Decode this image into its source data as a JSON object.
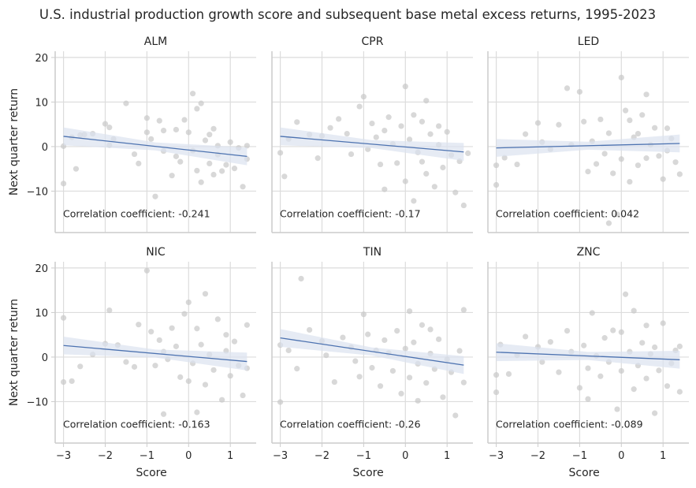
{
  "chart_data": {
    "type": "scatter",
    "title": "U.S. industrial production growth score and subsequent base metal excess returns, 1995-2023",
    "xlabel": "Score",
    "ylabel": "Next quarter return",
    "xlim": [
      -3.2,
      1.62
    ],
    "ylim": [
      -19.3,
      21.4
    ],
    "xticks": [
      -3,
      -2,
      -1,
      0,
      1
    ],
    "yticks": [
      -10,
      0,
      10,
      20
    ],
    "grid": true,
    "colors": {
      "points": "#c8c8c8",
      "line": "#4c72b0",
      "band": "#dbe3f0"
    },
    "corr_label": "Correlation coefficient:",
    "panels": [
      {
        "name": "ALM",
        "corr": "-0.241",
        "fit": [
          [
            -3,
            2.3
          ],
          [
            1.4,
            -2.2
          ]
        ],
        "points": [
          [
            -3,
            0.1
          ],
          [
            -3,
            -8.3
          ],
          [
            -2.8,
            2.1
          ],
          [
            -2.7,
            -5
          ],
          [
            -2.6,
            2.6
          ],
          [
            -2.5,
            2.7
          ],
          [
            -2.3,
            2.9
          ],
          [
            -2,
            5.1
          ],
          [
            -1.9,
            4.3
          ],
          [
            -1.9,
            0.3
          ],
          [
            -1.8,
            1.7
          ],
          [
            -1.5,
            9.7
          ],
          [
            -1.3,
            -1.7
          ],
          [
            -1.2,
            -3.8
          ],
          [
            -1,
            3.2
          ],
          [
            -1,
            6.4
          ],
          [
            -0.9,
            1.7
          ],
          [
            -0.8,
            -11.2
          ],
          [
            -0.7,
            5.8
          ],
          [
            -0.6,
            3.6
          ],
          [
            -0.6,
            -1
          ],
          [
            -0.4,
            -6.5
          ],
          [
            -0.3,
            -2.2
          ],
          [
            -0.2,
            -3.4
          ],
          [
            -0.1,
            6
          ],
          [
            0,
            3.2
          ],
          [
            0.1,
            11.9
          ],
          [
            0.2,
            -5.4
          ],
          [
            0.2,
            8.5
          ],
          [
            0.3,
            -8
          ],
          [
            0.4,
            1.4
          ],
          [
            0.5,
            2.7
          ],
          [
            0.5,
            -3.8
          ],
          [
            0.6,
            4
          ],
          [
            0.7,
            0.2
          ],
          [
            0.7,
            -1.8
          ],
          [
            0.8,
            -5.5
          ],
          [
            0.9,
            -4.1
          ],
          [
            1,
            1
          ],
          [
            1.1,
            -4.9
          ],
          [
            1.2,
            -0.3
          ],
          [
            1.3,
            -9
          ],
          [
            1.4,
            0.2
          ],
          [
            1.4,
            -2.8
          ],
          [
            0.3,
            9.7
          ],
          [
            0.1,
            -0.9
          ],
          [
            -0.3,
            3.8
          ],
          [
            0.6,
            -6.3
          ]
        ]
      },
      {
        "name": "CPR",
        "corr": "-0.17",
        "fit": [
          [
            -3,
            2.3
          ],
          [
            1.4,
            -1.2
          ]
        ],
        "points": [
          [
            -3,
            -1.4
          ],
          [
            -2.9,
            -6.7
          ],
          [
            -2.8,
            1.7
          ],
          [
            -2.6,
            5.5
          ],
          [
            -2.3,
            2.7
          ],
          [
            -2.1,
            -2.6
          ],
          [
            -2,
            2.4
          ],
          [
            -1.8,
            4.2
          ],
          [
            -1.6,
            6.2
          ],
          [
            -1.4,
            2.9
          ],
          [
            -1.3,
            -1.7
          ],
          [
            -1.1,
            9
          ],
          [
            -1,
            11.2
          ],
          [
            -0.9,
            -0.6
          ],
          [
            -0.8,
            5.2
          ],
          [
            -0.7,
            2.1
          ],
          [
            -0.6,
            -4
          ],
          [
            -0.5,
            3.6
          ],
          [
            -0.4,
            6.6
          ],
          [
            -0.3,
            0.6
          ],
          [
            -0.2,
            -3.7
          ],
          [
            -0.1,
            4.6
          ],
          [
            0,
            13.5
          ],
          [
            0,
            -7.8
          ],
          [
            0.1,
            1.6
          ],
          [
            0.2,
            7.1
          ],
          [
            0.3,
            -1.3
          ],
          [
            0.4,
            -3.4
          ],
          [
            0.4,
            5.6
          ],
          [
            0.5,
            10.3
          ],
          [
            0.5,
            -6.1
          ],
          [
            0.6,
            2.8
          ],
          [
            0.7,
            -9
          ],
          [
            0.8,
            0.4
          ],
          [
            0.9,
            -4.7
          ],
          [
            1,
            3.3
          ],
          [
            1.1,
            -1.9
          ],
          [
            1.2,
            -10.3
          ],
          [
            1.3,
            -3.3
          ],
          [
            1.4,
            -13.2
          ],
          [
            1.5,
            -1.5
          ],
          [
            0.2,
            -12.2
          ],
          [
            -0.5,
            -9.6
          ],
          [
            0.8,
            4.6
          ]
        ]
      },
      {
        "name": "LED",
        "corr": "0.042",
        "fit": [
          [
            -3,
            -0.3
          ],
          [
            1.4,
            0.7
          ]
        ],
        "points": [
          [
            -3,
            -4.2
          ],
          [
            -3,
            -8.6
          ],
          [
            -2.8,
            -2.5
          ],
          [
            -2.5,
            -4
          ],
          [
            -2.3,
            2.8
          ],
          [
            -2,
            5.3
          ],
          [
            -1.9,
            1
          ],
          [
            -1.7,
            -0.6
          ],
          [
            -1.5,
            4.9
          ],
          [
            -1.3,
            13.1
          ],
          [
            -1.2,
            0.4
          ],
          [
            -1,
            12.3
          ],
          [
            -0.9,
            5.6
          ],
          [
            -0.8,
            -5.6
          ],
          [
            -0.7,
            1.2
          ],
          [
            -0.6,
            -3.9
          ],
          [
            -0.5,
            6.1
          ],
          [
            -0.4,
            -1.6
          ],
          [
            -0.3,
            3
          ],
          [
            -0.2,
            -6
          ],
          [
            -0.1,
            -15.2
          ],
          [
            0,
            15.5
          ],
          [
            0,
            -2.8
          ],
          [
            0.1,
            8.1
          ],
          [
            0.2,
            5.9
          ],
          [
            0.2,
            -7.9
          ],
          [
            0.3,
            2.1
          ],
          [
            0.4,
            -4.2
          ],
          [
            0.5,
            7.1
          ],
          [
            0.6,
            11.7
          ],
          [
            0.6,
            -2.6
          ],
          [
            0.7,
            0.4
          ],
          [
            0.8,
            4.2
          ],
          [
            0.9,
            -2.1
          ],
          [
            1,
            -7.3
          ],
          [
            1.1,
            -0.9
          ],
          [
            1.2,
            1.8
          ],
          [
            1.3,
            -3.5
          ],
          [
            1.4,
            -6.2
          ],
          [
            -0.3,
            -17.2
          ],
          [
            0.4,
            2.9
          ],
          [
            1.1,
            4.1
          ]
        ]
      },
      {
        "name": "NIC",
        "corr": "-0.163",
        "fit": [
          [
            -3,
            2.6
          ],
          [
            1.4,
            -1
          ]
        ],
        "points": [
          [
            -3,
            8.8
          ],
          [
            -3,
            -5.6
          ],
          [
            -2.8,
            -5.4
          ],
          [
            -2.6,
            -2.1
          ],
          [
            -2.3,
            0.6
          ],
          [
            -2,
            3
          ],
          [
            -1.9,
            10.5
          ],
          [
            -1.7,
            2.7
          ],
          [
            -1.5,
            -1.1
          ],
          [
            -1.3,
            -2.2
          ],
          [
            -1.2,
            7.3
          ],
          [
            -1,
            19.4
          ],
          [
            -0.9,
            5.7
          ],
          [
            -0.8,
            -1.9
          ],
          [
            -0.7,
            3.8
          ],
          [
            -0.6,
            -12.8
          ],
          [
            -0.5,
            -0.5
          ],
          [
            -0.4,
            6.5
          ],
          [
            -0.3,
            2.4
          ],
          [
            -0.2,
            -4.5
          ],
          [
            -0.1,
            9.7
          ],
          [
            0,
            -5.4
          ],
          [
            0,
            12.3
          ],
          [
            0.1,
            -1.4
          ],
          [
            0.2,
            6.4
          ],
          [
            0.3,
            2.8
          ],
          [
            0.4,
            -6.2
          ],
          [
            0.4,
            14.2
          ],
          [
            0.5,
            0.6
          ],
          [
            0.6,
            -2.9
          ],
          [
            0.7,
            8.5
          ],
          [
            0.8,
            -9.6
          ],
          [
            0.9,
            1.4
          ],
          [
            1,
            -4.2
          ],
          [
            1.1,
            3.5
          ],
          [
            1.2,
            -1.9
          ],
          [
            1.3,
            -8.6
          ],
          [
            1.4,
            7.2
          ],
          [
            1.4,
            -2.5
          ],
          [
            0.2,
            -12.4
          ],
          [
            -0.6,
            1.2
          ],
          [
            0.9,
            5
          ]
        ]
      },
      {
        "name": "TIN",
        "corr": "-0.26",
        "fit": [
          [
            -3,
            4.3
          ],
          [
            1.4,
            -1.8
          ]
        ],
        "points": [
          [
            -3,
            -10.1
          ],
          [
            -3,
            2.7
          ],
          [
            -2.8,
            1.5
          ],
          [
            -2.6,
            -2.6
          ],
          [
            -2.5,
            17.6
          ],
          [
            -2.3,
            6.1
          ],
          [
            -2,
            3.6
          ],
          [
            -1.9,
            0.4
          ],
          [
            -1.7,
            -5.6
          ],
          [
            -1.5,
            4.4
          ],
          [
            -1.3,
            2.2
          ],
          [
            -1.2,
            -0.9
          ],
          [
            -1,
            9.6
          ],
          [
            -0.9,
            5.1
          ],
          [
            -0.8,
            -2.4
          ],
          [
            -0.7,
            1.5
          ],
          [
            -0.6,
            -6.5
          ],
          [
            -0.5,
            3.8
          ],
          [
            -0.4,
            0.9
          ],
          [
            -0.3,
            -3.1
          ],
          [
            -0.2,
            5.9
          ],
          [
            -0.1,
            -8.2
          ],
          [
            0,
            1.9
          ],
          [
            0.1,
            10.3
          ],
          [
            0.1,
            -4.6
          ],
          [
            0.2,
            3.3
          ],
          [
            0.3,
            -1.5
          ],
          [
            0.4,
            7.2
          ],
          [
            0.5,
            -5.8
          ],
          [
            0.6,
            0.8
          ],
          [
            0.7,
            -2.7
          ],
          [
            0.8,
            4
          ],
          [
            0.9,
            -9
          ],
          [
            1,
            -0.5
          ],
          [
            1.1,
            -3.4
          ],
          [
            1.2,
            -13.1
          ],
          [
            1.3,
            1.4
          ],
          [
            1.4,
            -5.7
          ],
          [
            1.4,
            10.6
          ],
          [
            0.3,
            -9.8
          ],
          [
            -1.1,
            -4.4
          ],
          [
            0.6,
            6.2
          ]
        ]
      },
      {
        "name": "ZNC",
        "corr": "-0.089",
        "fit": [
          [
            -3,
            1.1
          ],
          [
            1.4,
            -0.6
          ]
        ],
        "points": [
          [
            -3,
            -4
          ],
          [
            -3,
            -7.9
          ],
          [
            -2.9,
            2.8
          ],
          [
            -2.7,
            -3.8
          ],
          [
            -2.5,
            0.4
          ],
          [
            -2.3,
            4.6
          ],
          [
            -2,
            2.3
          ],
          [
            -1.9,
            -1.1
          ],
          [
            -1.7,
            3.4
          ],
          [
            -1.5,
            -3.4
          ],
          [
            -1.3,
            5.9
          ],
          [
            -1.2,
            1.2
          ],
          [
            -1,
            -6.9
          ],
          [
            -0.9,
            2.6
          ],
          [
            -0.8,
            -2.5
          ],
          [
            -0.7,
            9.9
          ],
          [
            -0.6,
            0.3
          ],
          [
            -0.5,
            -4.3
          ],
          [
            -0.4,
            4.3
          ],
          [
            -0.3,
            -1.1
          ],
          [
            -0.2,
            6
          ],
          [
            -0.1,
            -11.7
          ],
          [
            0,
            -3.1
          ],
          [
            0,
            5.6
          ],
          [
            0.1,
            14.1
          ],
          [
            0.2,
            1.2
          ],
          [
            0.3,
            -7.2
          ],
          [
            0.3,
            10.4
          ],
          [
            0.4,
            -1.9
          ],
          [
            0.5,
            3.2
          ],
          [
            0.6,
            -4.8
          ],
          [
            0.7,
            0.7
          ],
          [
            0.8,
            -12.6
          ],
          [
            0.8,
            2.2
          ],
          [
            0.9,
            -3
          ],
          [
            1,
            7.6
          ],
          [
            1.1,
            -6.5
          ],
          [
            1.2,
            -1.4
          ],
          [
            1.3,
            1.5
          ],
          [
            1.4,
            -7.8
          ],
          [
            1.4,
            2.4
          ],
          [
            0.6,
            7.1
          ],
          [
            -0.8,
            -9.4
          ]
        ]
      }
    ]
  }
}
